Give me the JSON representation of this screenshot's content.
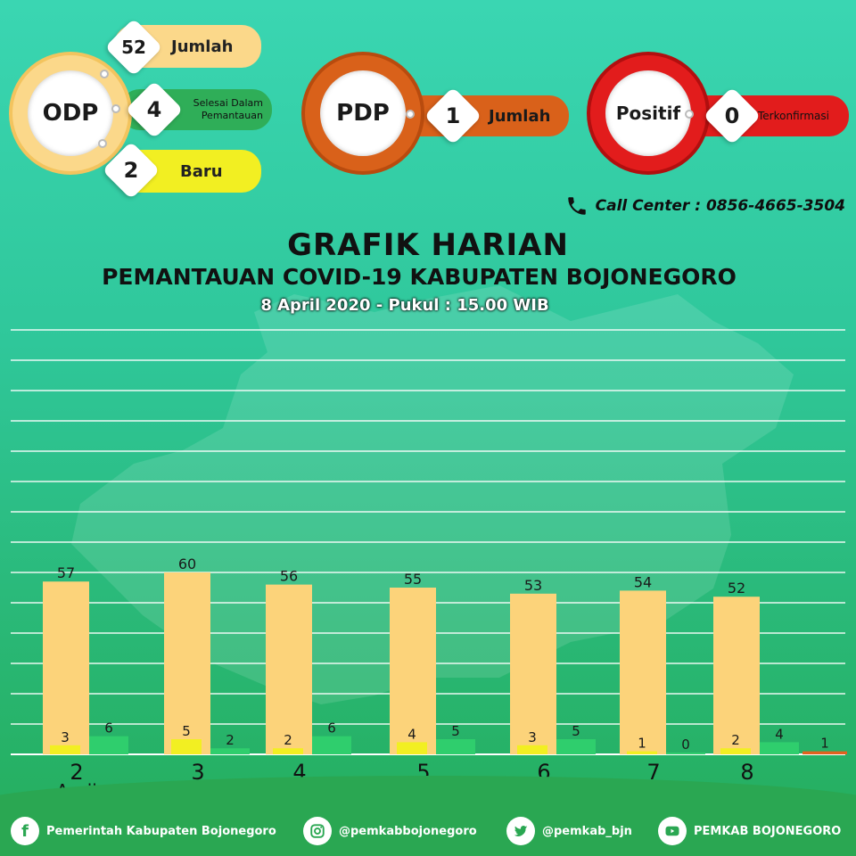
{
  "odp": {
    "label": "ODP",
    "jumlah_value": "52",
    "jumlah_label": "Jumlah",
    "selesai_value": "4",
    "selesai_label_1": "Selesai Dalam",
    "selesai_label_2": "Pemantauan",
    "baru_value": "2",
    "baru_label": "Baru",
    "color_ring": "#f7c96a",
    "color_selesai": "#2fae58",
    "color_baru": "#f2ef22"
  },
  "pdp": {
    "label": "PDP",
    "value": "1",
    "value_label": "Jumlah",
    "color": "#d9611a"
  },
  "positif": {
    "label": "Positif",
    "value": "0",
    "value_label": "Terkonfirmasi",
    "color": "#e21c1c"
  },
  "call_center": "Call Center : 0856-4665-3504",
  "title": {
    "line1": "GRAFIK HARIAN",
    "line2": "PEMANTAUAN COVID-19 KABUPATEN BOJONEGORO",
    "line3": "8 April 2020 - Pukul : 15.00 WIB"
  },
  "chart_data": {
    "type": "bar",
    "categories": [
      "2",
      "3",
      "4",
      "5",
      "6",
      "7",
      "8"
    ],
    "category_sublabel": "April",
    "series": [
      {
        "values": [
          57,
          60,
          56,
          55,
          53,
          54,
          52
        ],
        "color": "#fcd37a"
      },
      {
        "values": [
          3,
          5,
          2,
          4,
          3,
          1,
          2
        ],
        "color": "#f2ef22"
      },
      {
        "values": [
          6,
          2,
          6,
          5,
          5,
          0,
          4
        ],
        "color": "#2fce6d"
      },
      {
        "values": [
          null,
          null,
          null,
          null,
          null,
          null,
          1
        ],
        "color": "#e0621e"
      }
    ],
    "ylim": [
      0,
      140
    ],
    "grid": true
  },
  "footer": {
    "facebook": "Pemerintah Kabupaten Bojonegoro",
    "instagram": "@pemkabbojonegoro",
    "twitter": "@pemkab_bjn",
    "youtube": "PEMKAB BOJONEGORO"
  }
}
